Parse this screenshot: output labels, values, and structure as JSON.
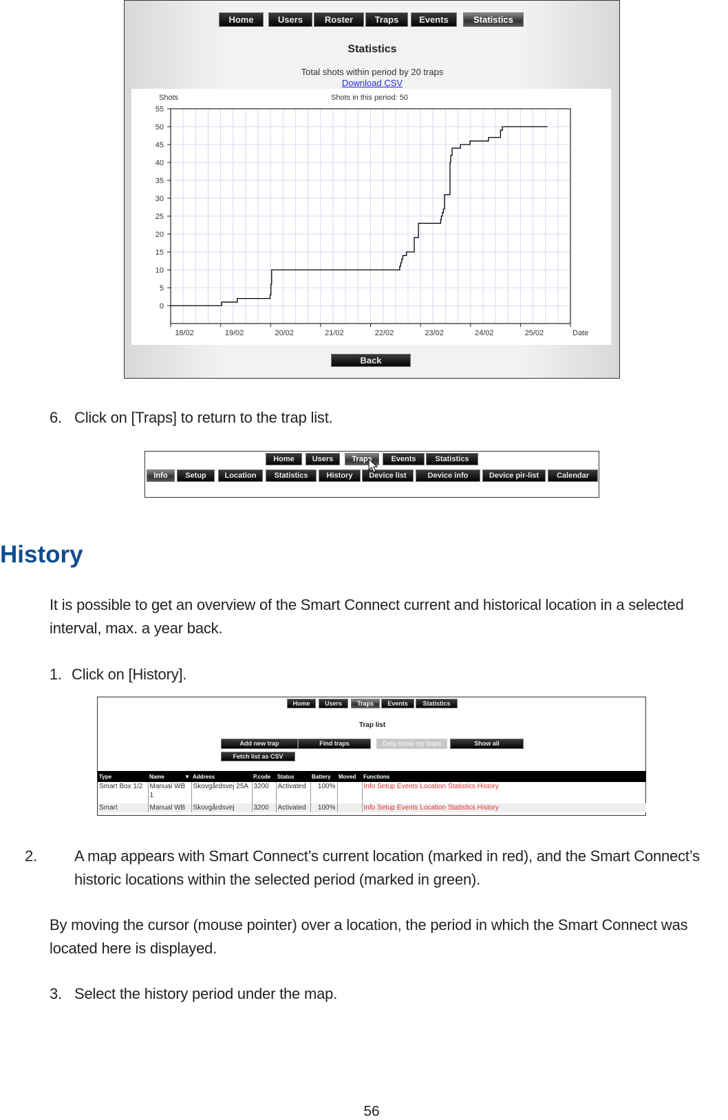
{
  "stats_screen": {
    "nav": [
      "Home",
      "Users",
      "Roster",
      "Traps",
      "Events",
      "Statistics"
    ],
    "active_nav": "Statistics",
    "title": "Statistics",
    "subtitle": "Total shots within period by 20 traps",
    "download_link": "Download CSV",
    "back_button": "Back"
  },
  "chart_data": {
    "type": "line",
    "step": true,
    "title": "Shots in this period: 50",
    "xlabel": "Date",
    "ylabel": "Shots",
    "x_ticks": [
      "18/02",
      "19/02",
      "20/02",
      "21/02",
      "22/02",
      "23/02",
      "24/02",
      "25/02"
    ],
    "x_range": [
      "18/02 00:00",
      "26/02 00:00"
    ],
    "ylim": [
      -5,
      55
    ],
    "y_ticks": [
      0,
      5,
      10,
      15,
      20,
      25,
      30,
      35,
      40,
      45,
      50,
      55
    ],
    "grid": true,
    "line_color": "#000000",
    "grid_color": "#d8d8f4",
    "points": [
      [
        "18/02 00:00",
        0
      ],
      [
        "19/02 00:30",
        1
      ],
      [
        "19/02 08:00",
        2
      ],
      [
        "19/02 23:45",
        3
      ],
      [
        "20/02 00:10",
        6
      ],
      [
        "20/02 00:30",
        10
      ],
      [
        "22/02 14:00",
        11
      ],
      [
        "22/02 14:30",
        12
      ],
      [
        "22/02 15:00",
        13
      ],
      [
        "22/02 15:30",
        14
      ],
      [
        "22/02 17:15",
        15
      ],
      [
        "22/02 21:00",
        19
      ],
      [
        "22/02 23:00",
        23
      ],
      [
        "23/02 09:40",
        24
      ],
      [
        "23/02 10:00",
        25
      ],
      [
        "23/02 10:30",
        26
      ],
      [
        "23/02 11:00",
        27
      ],
      [
        "23/02 11:30",
        31
      ],
      [
        "23/02 14:10",
        40
      ],
      [
        "23/02 14:30",
        42
      ],
      [
        "23/02 15:10",
        44
      ],
      [
        "23/02 19:10",
        45
      ],
      [
        "23/02 23:45",
        46
      ],
      [
        "24/02 08:40",
        47
      ],
      [
        "24/02 14:25",
        49
      ],
      [
        "24/02 15:20",
        50
      ],
      [
        "25/02 13:00",
        50
      ]
    ]
  },
  "step6": {
    "num": "6.",
    "text": "Click on [Traps] to return to the trap list."
  },
  "traps_nav_screen": {
    "nav": [
      "Home",
      "Users",
      "Traps",
      "Events",
      "Statistics"
    ],
    "sub_nav": [
      "Info",
      "Setup",
      "Location",
      "Statistics",
      "History",
      "Device list",
      "Device info",
      "Device pir-list",
      "Calendar"
    ]
  },
  "history": {
    "heading": "History",
    "heading_color": "#0f4c8f",
    "intro": "It is possible to get an overview of the Smart Connect current and historical location in a selected interval, max. a year back.",
    "step1": {
      "num": "1.",
      "text": "Click on [History]."
    },
    "step2": {
      "num": "2.",
      "text": "A map appears with Smart Connect’s current location (marked in red), and the Smart Connect’s historic locations within the selected period (marked in green)."
    },
    "note": "By moving the cursor (mouse pointer) over a location, the period in which the Smart Connect was located here is displayed.",
    "step3": {
      "num": "3.",
      "text": "Select the history period under the map."
    }
  },
  "trap_list_screen": {
    "nav": [
      "Home",
      "Users",
      "Traps",
      "Events",
      "Statistics"
    ],
    "title": "Trap list",
    "buttons": [
      "Add new trap",
      "Find traps",
      "Only show my traps",
      "Show all",
      "Fetch list as CSV"
    ],
    "columns": [
      "Type",
      "Name",
      "▼",
      "Address",
      "P.code",
      "Status",
      "Battery",
      "Moved",
      "Functions"
    ],
    "rows": [
      {
        "type": "Smart Box 1/2",
        "name": "Manual WB 1",
        "address": "Skovgårdsvej 25A",
        "pcode": "3200",
        "status": "Activated",
        "battery": "100%",
        "moved": ""
      },
      {
        "type": "Smart",
        "name": "Manual WB",
        "address": "Skovgårdsvej",
        "pcode": "3200",
        "status": "Activated",
        "battery": "100%",
        "moved": ""
      }
    ],
    "functions": [
      "Info",
      "Setup",
      "Events",
      "Location",
      "Statistics",
      "History"
    ]
  },
  "page_number": "56"
}
